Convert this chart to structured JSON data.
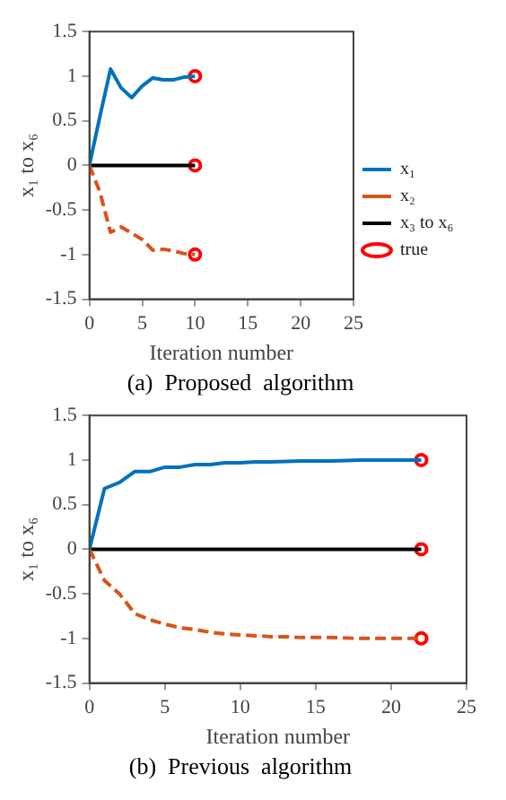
{
  "chart_data": [
    {
      "type": "line",
      "title": "(a)  Proposed  algorithm",
      "xlabel": "Iteration number",
      "ylabel": "x₁ to x₆",
      "xlim": [
        0,
        25
      ],
      "xticks": [
        0,
        5,
        10,
        15,
        20,
        25
      ],
      "ylim": [
        -1.5,
        1.5
      ],
      "yticks": [
        -1.5,
        -1,
        -0.5,
        0,
        0.5,
        1,
        1.5
      ],
      "grid": false,
      "legend": "right",
      "series": [
        {
          "name": "x₁",
          "color": "#0072bd",
          "line_style": "solid",
          "x": [
            0,
            1,
            2,
            3,
            4,
            5,
            6,
            7,
            8,
            9,
            10
          ],
          "values": [
            0,
            0.55,
            1.08,
            0.87,
            0.76,
            0.89,
            0.98,
            0.96,
            0.96,
            0.99,
            1.0
          ]
        },
        {
          "name": "x₂",
          "color": "#d95319",
          "line_style": "dashed",
          "x": [
            0,
            1,
            2,
            3,
            4,
            5,
            6,
            7,
            8,
            9,
            10
          ],
          "values": [
            0,
            -0.3,
            -0.75,
            -0.69,
            -0.76,
            -0.83,
            -0.95,
            -0.94,
            -0.96,
            -0.99,
            -1.0
          ]
        },
        {
          "name": "x₃ to x₆",
          "color": "#000000",
          "line_style": "solid",
          "x": [
            0,
            10
          ],
          "values": [
            0,
            0
          ]
        },
        {
          "name": "true",
          "type": "scatter",
          "color": "#ff0000",
          "marker": "circle",
          "x": [
            10,
            10,
            10
          ],
          "values": [
            1,
            0,
            -1
          ]
        }
      ]
    },
    {
      "type": "line",
      "title": "(b)  Previous  algorithm",
      "xlabel": "Iteration number",
      "ylabel": "x₁ to x₆",
      "xlim": [
        0,
        25
      ],
      "xticks": [
        0,
        5,
        10,
        15,
        20,
        25
      ],
      "ylim": [
        -1.5,
        1.5
      ],
      "yticks": [
        -1.5,
        -1,
        -0.5,
        0,
        0.5,
        1,
        1.5
      ],
      "grid": false,
      "series": [
        {
          "color": "#0072bd",
          "line_style": "solid",
          "x": [
            0,
            1,
            2,
            3,
            4,
            5,
            6,
            7,
            8,
            9,
            10,
            11,
            12,
            14,
            16,
            18,
            20,
            22
          ],
          "values": [
            0,
            0.68,
            0.75,
            0.87,
            0.87,
            0.92,
            0.92,
            0.95,
            0.95,
            0.97,
            0.97,
            0.98,
            0.98,
            0.99,
            0.99,
            1.0,
            1.0,
            1.0
          ]
        },
        {
          "color": "#d95319",
          "line_style": "dashed",
          "x": [
            0,
            1,
            2,
            3,
            4,
            5,
            6,
            7,
            8,
            9,
            10,
            11,
            12,
            13,
            14,
            16,
            18,
            20,
            22
          ],
          "values": [
            0,
            -0.35,
            -0.5,
            -0.72,
            -0.79,
            -0.84,
            -0.88,
            -0.9,
            -0.93,
            -0.95,
            -0.96,
            -0.97,
            -0.98,
            -0.98,
            -0.99,
            -0.99,
            -1.0,
            -1.0,
            -1.0
          ]
        },
        {
          "color": "#000000",
          "line_style": "solid",
          "x": [
            0,
            22
          ],
          "values": [
            0,
            0
          ]
        },
        {
          "type": "scatter",
          "color": "#ff0000",
          "marker": "circle",
          "x": [
            22,
            22,
            22
          ],
          "values": [
            1,
            0,
            -1
          ]
        }
      ]
    }
  ]
}
